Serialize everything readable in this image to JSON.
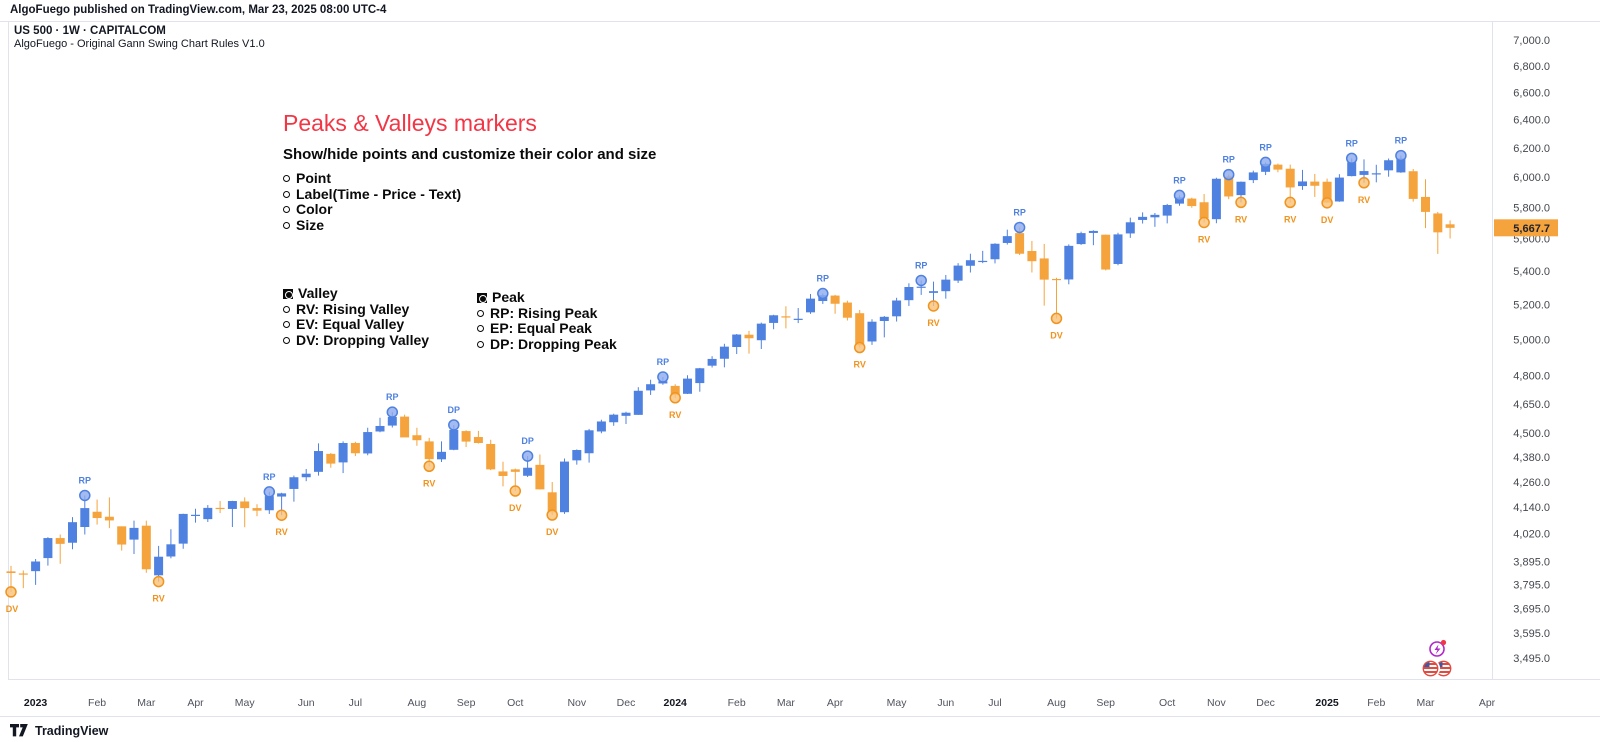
{
  "page": {
    "published_line": "AlgoFuego published on TradingView.com, Mar 23, 2025 08:00 UTC-4"
  },
  "chart": {
    "symbol_line": "US 500 · 1W · CAPITALCOM",
    "indicator_line": "AlgoFuego - Original Gann Swing Chart Rules V1.0"
  },
  "annotation": {
    "title": "Peaks & Valleys markers",
    "subtitle": "Show/hide points and customize their color and size",
    "options": [
      "Point",
      "Label(Time - Price - Text)",
      "Color",
      "Size"
    ],
    "valley_header": "Valley",
    "valley_items": [
      "RV: Rising Valley",
      "EV: Equal Valley",
      "DV: Dropping Valley"
    ],
    "peak_header": "Peak",
    "peak_items": [
      "RP: Rising Peak",
      "EP: Equal Peak",
      "DP: Dropping Peak"
    ]
  },
  "footer": {
    "brand": "TradingView"
  },
  "chart_data": {
    "type": "candlestick",
    "title": "US 500 weekly candles with Gann swing peak/valley markers",
    "timeframe": "1W",
    "scale": "log",
    "y_domain": [
      3440,
      7050
    ],
    "first_candle_week": "2022-12-19",
    "last_candle_week": "2025-03-17",
    "last_price": 5667.7,
    "last_price_label": "5,667.7",
    "colors": {
      "up": "#4f81e0",
      "down": "#f5a33c",
      "up_marker_fill": "#8caaee",
      "up_marker_stroke": "#4f81e0",
      "down_marker_fill": "#f9c178",
      "down_marker_stroke": "#f0941f",
      "badge_bg": "#f5a33c",
      "badge_text": "#1e222d",
      "axis_text": "#44484f",
      "axis_line": "#e0e3eb",
      "title_red": "#f23645"
    },
    "price_ticks": [
      {
        "label": "7,000.0",
        "value": 7000
      },
      {
        "label": "6,800.0",
        "value": 6800
      },
      {
        "label": "6,600.0",
        "value": 6600
      },
      {
        "label": "6,400.0",
        "value": 6400
      },
      {
        "label": "6,200.0",
        "value": 6200
      },
      {
        "label": "6,000.0",
        "value": 6000
      },
      {
        "label": "5,800.0",
        "value": 5800
      },
      {
        "label": "5,600.0",
        "value": 5600
      },
      {
        "label": "5,400.0",
        "value": 5400
      },
      {
        "label": "5,200.0",
        "value": 5200
      },
      {
        "label": "5,000.0",
        "value": 5000
      },
      {
        "label": "4,800.0",
        "value": 4800
      },
      {
        "label": "4,650.0",
        "value": 4650
      },
      {
        "label": "4,500.0",
        "value": 4500
      },
      {
        "label": "4,380.0",
        "value": 4380
      },
      {
        "label": "4,260.0",
        "value": 4260
      },
      {
        "label": "4,140.0",
        "value": 4140
      },
      {
        "label": "4,020.0",
        "value": 4020
      },
      {
        "label": "3,895.0",
        "value": 3895
      },
      {
        "label": "3,795.0",
        "value": 3795
      },
      {
        "label": "3,695.0",
        "value": 3695
      },
      {
        "label": "3,595.0",
        "value": 3595
      },
      {
        "label": "3,495.0",
        "value": 3495
      }
    ],
    "time_ticks": [
      {
        "label": "2023",
        "week": 2,
        "year": true
      },
      {
        "label": "Feb",
        "week": 7
      },
      {
        "label": "Mar",
        "week": 11
      },
      {
        "label": "Apr",
        "week": 15
      },
      {
        "label": "May",
        "week": 19
      },
      {
        "label": "Jun",
        "week": 24
      },
      {
        "label": "Jul",
        "week": 28
      },
      {
        "label": "Aug",
        "week": 33
      },
      {
        "label": "Sep",
        "week": 37
      },
      {
        "label": "Oct",
        "week": 41
      },
      {
        "label": "Nov",
        "week": 46
      },
      {
        "label": "Dec",
        "week": 50
      },
      {
        "label": "2024",
        "week": 54,
        "year": true
      },
      {
        "label": "Feb",
        "week": 59
      },
      {
        "label": "Mar",
        "week": 63
      },
      {
        "label": "Apr",
        "week": 67
      },
      {
        "label": "May",
        "week": 72
      },
      {
        "label": "Jun",
        "week": 76
      },
      {
        "label": "Jul",
        "week": 80
      },
      {
        "label": "Aug",
        "week": 85
      },
      {
        "label": "Sep",
        "week": 89
      },
      {
        "label": "Oct",
        "week": 94
      },
      {
        "label": "Nov",
        "week": 98
      },
      {
        "label": "Dec",
        "week": 102
      },
      {
        "label": "2025",
        "week": 107,
        "year": true
      },
      {
        "label": "Feb",
        "week": 111
      },
      {
        "label": "Mar",
        "week": 115
      },
      {
        "label": "Apr",
        "week": 120
      }
    ],
    "candles": [
      [
        3852,
        3876,
        3764,
        3845
      ],
      [
        3843,
        3856,
        3780,
        3840
      ],
      [
        3853,
        3906,
        3794,
        3895
      ],
      [
        3910,
        4003,
        3877,
        3999
      ],
      [
        3999,
        4015,
        3885,
        3973
      ],
      [
        3978,
        4094,
        3949,
        4071
      ],
      [
        4049,
        4195,
        4015,
        4136
      ],
      [
        4119,
        4176,
        4060,
        4090
      ],
      [
        4096,
        4186,
        4044,
        4079
      ],
      [
        4052,
        4052,
        3943,
        3970
      ],
      [
        3992,
        4078,
        3928,
        4045
      ],
      [
        4055,
        4078,
        3846,
        3861
      ],
      [
        3835,
        3964,
        3808,
        3916
      ],
      [
        3917,
        4039,
        3909,
        3971
      ],
      [
        3974,
        4110,
        3951,
        4109
      ],
      [
        4102,
        4133,
        4069,
        4105
      ],
      [
        4085,
        4150,
        4072,
        4137
      ],
      [
        4137,
        4169,
        4113,
        4133
      ],
      [
        4132,
        4170,
        4049,
        4169
      ],
      [
        4167,
        4186,
        4048,
        4136
      ],
      [
        4136,
        4154,
        4098,
        4124
      ],
      [
        4126,
        4212,
        4109,
        4192
      ],
      [
        4190,
        4208,
        4103,
        4205
      ],
      [
        4226,
        4290,
        4166,
        4282
      ],
      [
        4282,
        4322,
        4263,
        4299
      ],
      [
        4308,
        4448,
        4290,
        4410
      ],
      [
        4396,
        4400,
        4328,
        4348
      ],
      [
        4354,
        4458,
        4302,
        4450
      ],
      [
        4450,
        4456,
        4385,
        4399
      ],
      [
        4398,
        4527,
        4389,
        4505
      ],
      [
        4508,
        4578,
        4504,
        4536
      ],
      [
        4538,
        4607,
        4528,
        4582
      ],
      [
        4584,
        4594,
        4485,
        4478
      ],
      [
        4489,
        4527,
        4436,
        4464
      ],
      [
        4458,
        4476,
        4335,
        4370
      ],
      [
        4369,
        4458,
        4356,
        4406
      ],
      [
        4416,
        4541,
        4414,
        4516
      ],
      [
        4510,
        4514,
        4430,
        4457
      ],
      [
        4480,
        4511,
        4447,
        4450
      ],
      [
        4445,
        4466,
        4316,
        4320
      ],
      [
        4310,
        4357,
        4238,
        4288
      ],
      [
        4320,
        4324,
        4216,
        4308
      ],
      [
        4289,
        4385,
        4283,
        4328
      ],
      [
        4342,
        4393,
        4223,
        4224
      ],
      [
        4210,
        4259,
        4104,
        4117
      ],
      [
        4117,
        4373,
        4109,
        4358
      ],
      [
        4364,
        4418,
        4343,
        4415
      ],
      [
        4399,
        4521,
        4353,
        4514
      ],
      [
        4508,
        4568,
        4499,
        4559
      ],
      [
        4555,
        4599,
        4537,
        4594
      ],
      [
        4588,
        4609,
        4546,
        4604
      ],
      [
        4593,
        4738,
        4593,
        4719
      ],
      [
        4721,
        4778,
        4697,
        4754
      ],
      [
        4758,
        4793,
        4751,
        4770
      ],
      [
        4745,
        4754,
        4682,
        4697
      ],
      [
        4703,
        4802,
        4702,
        4784
      ],
      [
        4760,
        4842,
        4714,
        4840
      ],
      [
        4854,
        4906,
        4844,
        4891
      ],
      [
        4892,
        4975,
        4845,
        4959
      ],
      [
        4957,
        5030,
        4918,
        5027
      ],
      [
        5026,
        5048,
        4920,
        5006
      ],
      [
        4995,
        5095,
        4946,
        5089
      ],
      [
        5093,
        5140,
        5057,
        5137
      ],
      [
        5131,
        5189,
        5062,
        5124
      ],
      [
        5111,
        5179,
        5092,
        5117
      ],
      [
        5154,
        5261,
        5145,
        5234
      ],
      [
        5220,
        5264,
        5203,
        5254
      ],
      [
        5252,
        5256,
        5146,
        5204
      ],
      [
        5211,
        5222,
        5107,
        5123
      ],
      [
        5149,
        5168,
        4954,
        4967
      ],
      [
        4988,
        5114,
        4969,
        5100
      ],
      [
        5104,
        5133,
        5011,
        5128
      ],
      [
        5131,
        5239,
        5101,
        5223
      ],
      [
        5225,
        5325,
        5191,
        5303
      ],
      [
        5302,
        5342,
        5256,
        5305
      ],
      [
        5268,
        5335,
        5191,
        5278
      ],
      [
        5278,
        5375,
        5234,
        5347
      ],
      [
        5341,
        5447,
        5327,
        5432
      ],
      [
        5431,
        5505,
        5390,
        5465
      ],
      [
        5459,
        5523,
        5447,
        5461
      ],
      [
        5471,
        5570,
        5446,
        5567
      ],
      [
        5572,
        5656,
        5562,
        5615
      ],
      [
        5634,
        5670,
        5497,
        5505
      ],
      [
        5522,
        5585,
        5390,
        5459
      ],
      [
        5476,
        5566,
        5193,
        5347
      ],
      [
        5351,
        5358,
        5119,
        5344
      ],
      [
        5348,
        5563,
        5319,
        5554
      ],
      [
        5565,
        5643,
        5560,
        5634
      ],
      [
        5635,
        5652,
        5558,
        5648
      ],
      [
        5624,
        5625,
        5403,
        5408
      ],
      [
        5442,
        5636,
        5434,
        5626
      ],
      [
        5632,
        5733,
        5604,
        5703
      ],
      [
        5718,
        5767,
        5695,
        5738
      ],
      [
        5735,
        5763,
        5674,
        5751
      ],
      [
        5746,
        5822,
        5696,
        5815
      ],
      [
        5824,
        5878,
        5810,
        5865
      ],
      [
        5857,
        5863,
        5797,
        5808
      ],
      [
        5833,
        5887,
        5702,
        5729
      ],
      [
        5723,
        5996,
        5697,
        5989
      ],
      [
        6004,
        6017,
        5853,
        5871
      ],
      [
        5880,
        5971,
        5832,
        5969
      ],
      [
        5980,
        6044,
        5960,
        6032
      ],
      [
        6036,
        6100,
        6014,
        6090
      ],
      [
        6085,
        6092,
        6033,
        6051
      ],
      [
        6057,
        6085,
        5832,
        5931
      ],
      [
        5940,
        6049,
        5915,
        5971
      ],
      [
        5970,
        6021,
        5868,
        5942
      ],
      [
        5969,
        5990,
        5829,
        5831
      ],
      [
        5838,
        6020,
        5836,
        5997
      ],
      [
        6007,
        6128,
        6005,
        6101
      ],
      [
        6015,
        6121,
        5962,
        6041
      ],
      [
        6020,
        6084,
        5965,
        6026
      ],
      [
        6046,
        6127,
        6003,
        6115
      ],
      [
        6032,
        6147,
        6029,
        6127
      ],
      [
        6040,
        6055,
        5837,
        5855
      ],
      [
        5868,
        5986,
        5666,
        5770
      ],
      [
        5760,
        5770,
        5504,
        5639
      ],
      [
        5690,
        5715,
        5600,
        5667.7
      ]
    ],
    "markers": [
      {
        "week": 0,
        "type": "DV"
      },
      {
        "week": 6,
        "type": "RP"
      },
      {
        "week": 12,
        "type": "RV"
      },
      {
        "week": 21,
        "type": "RP"
      },
      {
        "week": 22,
        "type": "RV"
      },
      {
        "week": 31,
        "type": "RP"
      },
      {
        "week": 34,
        "type": "RV"
      },
      {
        "week": 36,
        "type": "DP"
      },
      {
        "week": 41,
        "type": "DV"
      },
      {
        "week": 42,
        "type": "DP"
      },
      {
        "week": 44,
        "type": "DV"
      },
      {
        "week": 53,
        "type": "RP"
      },
      {
        "week": 54,
        "type": "RV"
      },
      {
        "week": 66,
        "type": "RP"
      },
      {
        "week": 69,
        "type": "RV"
      },
      {
        "week": 74,
        "type": "RP"
      },
      {
        "week": 75,
        "type": "RV"
      },
      {
        "week": 82,
        "type": "RP"
      },
      {
        "week": 85,
        "type": "DV"
      },
      {
        "week": 95,
        "type": "RP"
      },
      {
        "week": 97,
        "type": "RV"
      },
      {
        "week": 99,
        "type": "RP"
      },
      {
        "week": 100,
        "type": "RV"
      },
      {
        "week": 102,
        "type": "RP"
      },
      {
        "week": 104,
        "type": "RV"
      },
      {
        "week": 107,
        "type": "DV"
      },
      {
        "week": 109,
        "type": "RP"
      },
      {
        "week": 110,
        "type": "RV"
      },
      {
        "week": 113,
        "type": "RP"
      }
    ]
  },
  "event_icons": {
    "lightning": {
      "ring": "#b126c9",
      "dot": "#f23645"
    },
    "flags": {
      "stripe": "#e04a3f",
      "canton": "#3c5aa6",
      "rim": "#e04a3f"
    }
  }
}
